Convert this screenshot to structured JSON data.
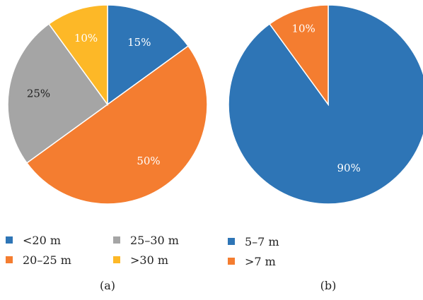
{
  "chart_data": [
    {
      "type": "pie",
      "caption": "(a)",
      "title": "",
      "categories": [
        "<20 m",
        "20–25 m",
        "25–30 m",
        ">30 m"
      ],
      "values": [
        15,
        50,
        25,
        10
      ],
      "labels": [
        "15%",
        "50%",
        "25%",
        "10%"
      ],
      "colors": [
        "#2e75b6",
        "#f47d30",
        "#a5a5a5",
        "#fdb827"
      ],
      "label_colors": [
        "#ffffff",
        "#ffffff",
        "#222222",
        "#ffffff"
      ],
      "start_angle_deg": 0,
      "direction": "clockwise",
      "legend_position": "bottom"
    },
    {
      "type": "pie",
      "caption": "(b)",
      "title": "",
      "categories": [
        "5–7 m",
        ">7 m"
      ],
      "values": [
        90,
        10
      ],
      "labels": [
        "90%",
        "10%"
      ],
      "colors": [
        "#2e75b6",
        "#f47d30"
      ],
      "label_colors": [
        "#ffffff",
        "#ffffff"
      ],
      "start_angle_deg": 0,
      "direction": "clockwise",
      "legend_position": "bottom"
    }
  ]
}
